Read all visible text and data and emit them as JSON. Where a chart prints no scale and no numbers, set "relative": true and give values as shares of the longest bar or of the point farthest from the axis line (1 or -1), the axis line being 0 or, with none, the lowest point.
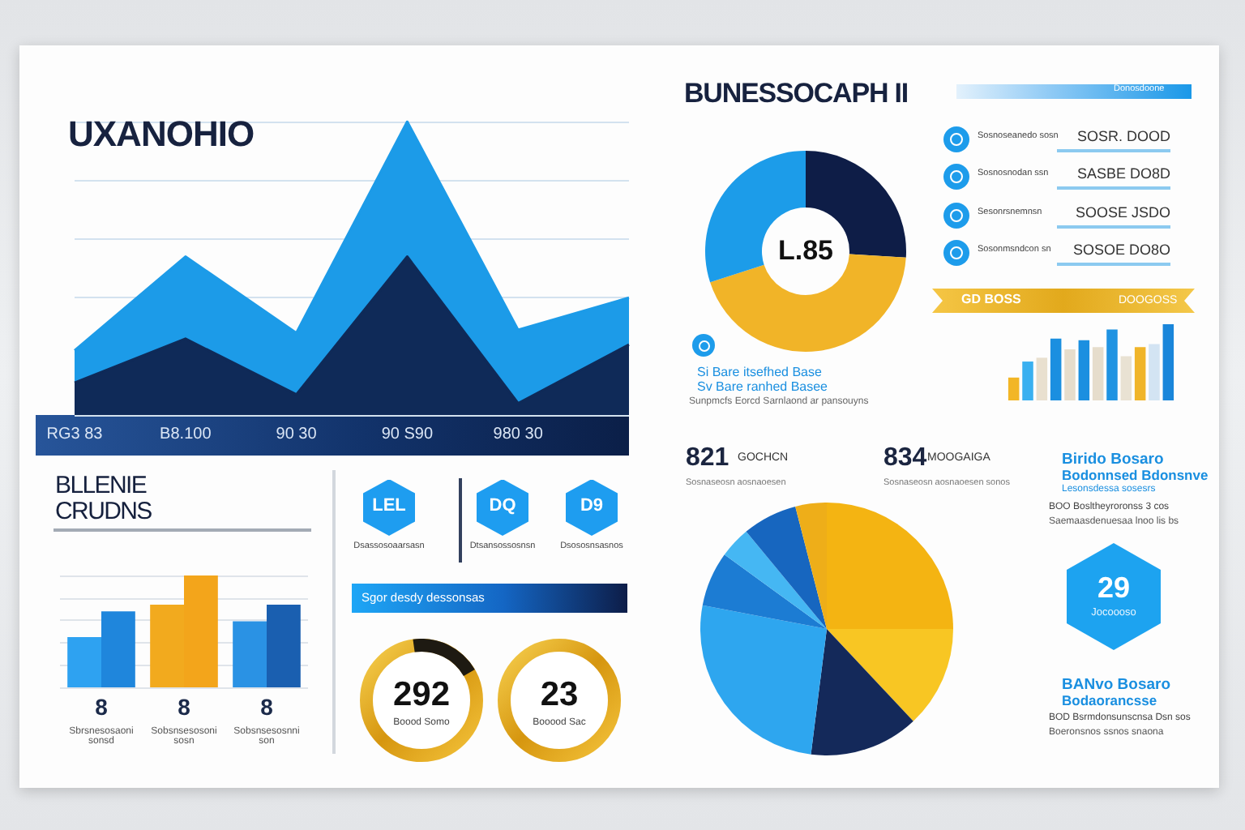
{
  "chart_data": [
    {
      "type": "area",
      "title": "UXANOHIO",
      "categories": [
        "RG3 83",
        "B8.100",
        "90 30",
        "90 S90",
        "980 30",
        null
      ],
      "relative": true,
      "grid": "y",
      "series": [
        {
          "color": "#1c9be8",
          "values": [
            0.22,
            0.54,
            0.28,
            1,
            0.29,
            0.4
          ]
        },
        {
          "color": "#0f2a58",
          "values": [
            0.11,
            0.26,
            0.07,
            0.54,
            0.04,
            0.24
          ]
        }
      ]
    },
    {
      "type": "donut",
      "title": "BUNESSOCAPH II",
      "categories": [
        null,
        null,
        null
      ],
      "values": [
        26,
        44,
        30
      ],
      "colors": [
        "#0e1d47",
        "#f1b428",
        "#1c9ce9"
      ],
      "annotations": [
        "L.85",
        "Si Bare itsefhed Base",
        "Sv Bare ranhed Basee",
        "Sunpmcfs Eorcd Sarnlaond ar pansouyns"
      ]
    },
    {
      "type": "other",
      "annotations": [
        "Donosdoone",
        "SOSR. DOOD",
        "SASBE DO8D",
        "SOOSE JSDO",
        "SOSOE DO8O",
        "Sosnoseanedo sosn",
        "Sosnosnodan ssn",
        "Sesonrsnemnsn",
        "Sosonmsndcon sn"
      ]
    },
    {
      "type": "bar",
      "title": "GD BOSS",
      "subtitle": "DOOGOSS",
      "categories": [
        null,
        null,
        null,
        null,
        null,
        null,
        null,
        null,
        null,
        null,
        null,
        null
      ],
      "relative": true,
      "values": [
        0.3,
        0.51,
        0.56,
        0.81,
        0.67,
        0.79,
        0.7,
        0.93,
        0.58,
        0.7,
        0.74,
        1
      ],
      "colors": [
        "#f2b626",
        "#3ab0f0",
        "#e9e0cf",
        "#1b8fe0",
        "#e6ddcc",
        "#1b8fe0",
        "#e6ddcc",
        "#1f93e2",
        "#e9e2d3",
        "#f0b52a",
        "#d3e4f3",
        "#1a86da"
      ]
    },
    {
      "type": "bar",
      "title": "BLLENIE CRUDNS",
      "categories": [
        "8",
        "8",
        "8"
      ],
      "relative": true,
      "grid": "y",
      "series": [
        {
          "colors": [
            "#2ea2f1",
            "#f2aa1e",
            "#2a92e4"
          ],
          "values": [
            0.45,
            0.74,
            0.59
          ]
        },
        {
          "colors": [
            "#1f86dc",
            "#f3a51b",
            "#1a5fb0"
          ],
          "values": [
            0.68,
            1,
            0.74
          ]
        }
      ],
      "annotations": [
        "Sbrsnesosaoni sonsd",
        "Sobsnsesosoni sosn",
        "Sobsnsesosnni son"
      ]
    },
    {
      "type": "other",
      "annotations": [
        "LEL",
        "DQ",
        "D9",
        "Dsassosoaarsasn",
        "Dtsansossosnsn",
        "Dsososnsasnos",
        "Sgor desdy dessonsas",
        "292",
        "Boood Somo",
        "23",
        "Booood Sac"
      ]
    },
    {
      "type": "pie",
      "categories": [
        null,
        null,
        null,
        null,
        null,
        null,
        null,
        null
      ],
      "values": [
        25,
        13,
        14,
        26,
        7,
        4,
        7,
        4
      ],
      "colors": [
        "#f4b412",
        "#f8c623",
        "#14295a",
        "#2ea6ef",
        "#1c7cd3",
        "#45b7f3",
        "#1766bf",
        "#eeae19"
      ],
      "annotations": [
        "821",
        "GOCHCN",
        "834",
        "MOOGAIGA",
        "Sosnaseosn aosnaoesen",
        "Sosnaseosn aosnaoesen sonos"
      ]
    },
    {
      "type": "other",
      "annotations": [
        "Birido Bosaro",
        "Bodonnsed Bdonsnve",
        "Lesonsdessa sosesrs",
        "BOO Bosltheyroronss 3 cos",
        "Saemaasdenuesaa lnoo lis bs",
        "29",
        "Jocoooso",
        "BANvo Bosaro",
        "Bodaorancsse",
        "BOD Bsrmdonsunscnsa Dsn sos",
        "Boeronsnos ssnos snaona"
      ]
    }
  ]
}
